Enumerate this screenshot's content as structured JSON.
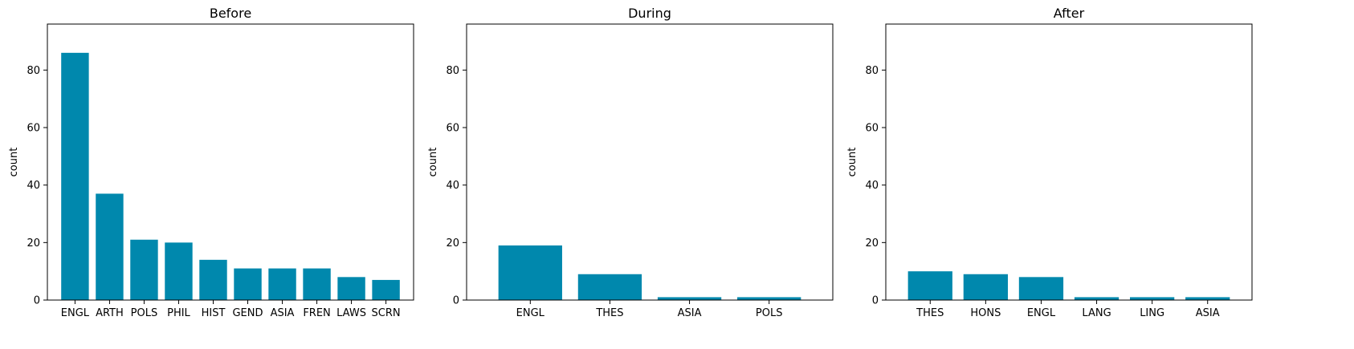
{
  "colors": {
    "bar": "#0088ad"
  },
  "chart_data": [
    {
      "type": "bar",
      "title": "Before",
      "xlabel": "",
      "ylabel": "count",
      "ylim": [
        0,
        96
      ],
      "yticks": [
        0,
        20,
        40,
        60,
        80
      ],
      "grid": false,
      "categories": [
        "ENGL",
        "ARTH",
        "POLS",
        "PHIL",
        "HIST",
        "GEND",
        "ASIA",
        "FREN",
        "LAWS",
        "SCRN"
      ],
      "values": [
        86,
        37,
        21,
        20,
        14,
        11,
        11,
        11,
        8,
        7
      ]
    },
    {
      "type": "bar",
      "title": "During",
      "xlabel": "",
      "ylabel": "count",
      "ylim": [
        0,
        96
      ],
      "yticks": [
        0,
        20,
        40,
        60,
        80
      ],
      "grid": false,
      "categories": [
        "ENGL",
        "THES",
        "ASIA",
        "POLS"
      ],
      "values": [
        19,
        9,
        1,
        1
      ]
    },
    {
      "type": "bar",
      "title": "After",
      "xlabel": "",
      "ylabel": "count",
      "ylim": [
        0,
        96
      ],
      "yticks": [
        0,
        20,
        40,
        60,
        80
      ],
      "grid": false,
      "categories": [
        "THES",
        "HONS",
        "ENGL",
        "LANG",
        "LING",
        "ASIA"
      ],
      "values": [
        10,
        9,
        8,
        1,
        1,
        1
      ]
    }
  ]
}
